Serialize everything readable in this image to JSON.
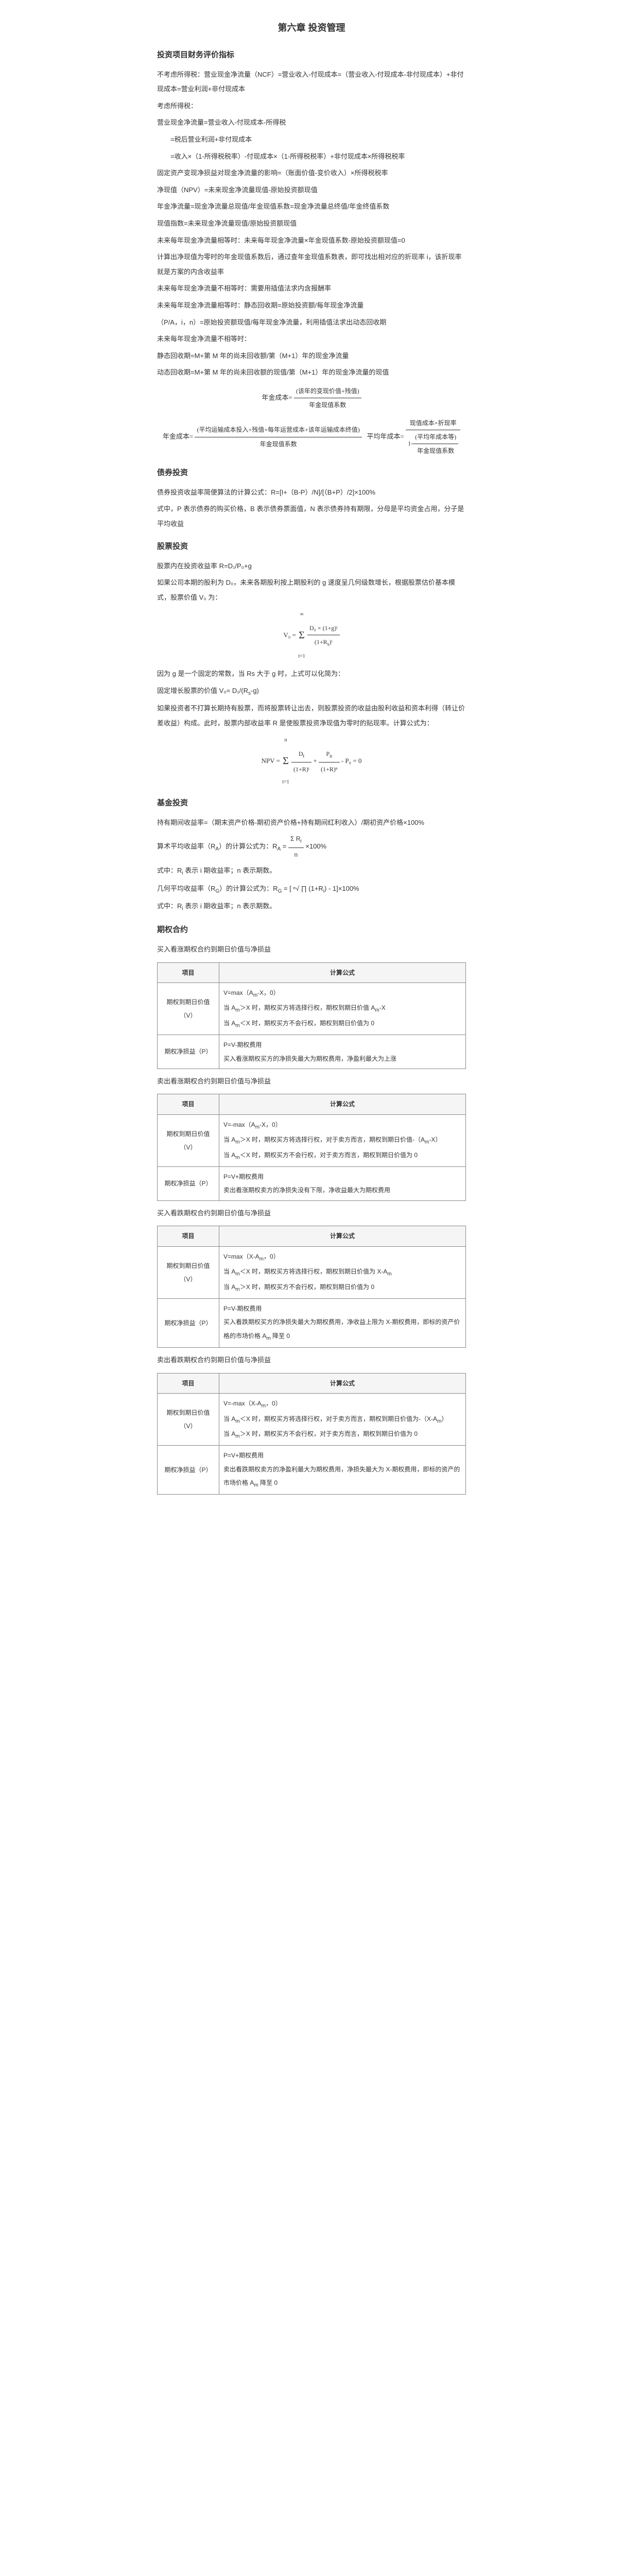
{
  "title": "第六章 投资管理",
  "sections": {
    "s1": {
      "heading": "投资项目财务评价指标",
      "lines": [
        "不考虑所得税：营业现金净流量（NCF）=营业收入-付现成本=（营业收入-付现成本-非付现成本）+非付现成本=营业利润+非付现成本",
        "考虑所得税：",
        "营业现金净流量=营业收入-付现成本-所得税",
        "=税后营业利润+非付现成本",
        "=收入×（1-所得税税率）-付现成本×（1-所得税税率）+非付现成本×所得税税率",
        "固定资产变现净损益对现金净流量的影响=（账面价值-变价收入）×所得税税率",
        "净现值（NPV）=未来现金净流量现值-原始投资额现值",
        "年金净流量=现金净流量总现值/年金现值系数=现金净流量总终值/年金终值系数",
        "现值指数=未来现金净流量现值/原始投资额现值",
        "未来每年现金净流量相等时：未来每年现金净流量×年金现值系数-原始投资额现值=0",
        "计算出净现值为零时的年金现值系数后，通过查年金现值系数表，即可找出相对应的折现率 i，该折现率就是方案的内含收益率",
        "未来每年现金净流量不相等时：需要用插值法求内含报酬率",
        "未来每年现金净流量相等时：静态回收期=原始投资额/每年现金净流量",
        "（P/A，i，n）=原始投资额现值/每年现金净流量，利用插值法求出动态回收期",
        "未来每年现金净流量不相等时：",
        "静态回收期=M+第 M 年的尚未回收额/第（M+1）年的现金净流量",
        "动态回收期=M+第 M 年的尚未回收额的现值/第（M+1）年的现金净流量的现值"
      ],
      "formula_label1": "年金成本=",
      "formula_label2": "年金成本=",
      "formula_frac1_num": "(该年的变现价值+残值)",
      "formula_frac1_den": "年金现值系数",
      "formula_frac2_num": "(平均运输成本投入+残值+每年运营成本+该年运输成本终值)",
      "formula_frac2_den": "年金现值系数",
      "formula_tail1": "平均年成本=",
      "formula_tail1_num": "现值成本×折现率",
      "formula_tail1_den": "1-",
      "formula_tail2": "(平均年成本等)",
      "formula_tail2_den": "年金现值系数"
    },
    "s2": {
      "heading": "债券投资",
      "lines": [
        "债券投资收益率简便算法的计算公式：R=[I+（B-P）/N]/[（B+P）/2]×100%",
        "式中，P 表示债券的购买价格，B 表示债券票面值，N 表示债券持有期限，分母是平均资金占用，分子是平均收益"
      ]
    },
    "s3": {
      "heading": "股票投资",
      "lines": [
        "股票内在投资收益率 R=D₁/P₀+g",
        "如果公司本期的股利为 D₀，未来各期股利按上期股利的 g 速度呈几何级数增长，根据股票估价基本模式，股票价值 V₀ 为："
      ],
      "formula1_lhs": "V₀ =",
      "formula1_sum": "Σ",
      "formula1_sum_from": "t=1",
      "formula1_sum_to": "∞",
      "formula1_num": "D₀ × (1+g)ᵗ",
      "formula1_den": "(1+R<sub>s</sub>)ᵗ",
      "lines2": [
        "因为 g 是一个固定的常数，当 Rs 大于 g 时，上式可以化简为：",
        "固定增长股票的价值 V₀= D₁/(R<sub>s</sub>-g)",
        "如果投资者不打算长期持有股票，而将股票转让出去，则股票投资的收益由股利收益和资本利得（转让价差收益）构成。此时，股票内部收益率 R 是使股票投资净现值为零时的贴现率。计算公式为："
      ],
      "formula2_lhs": "NPV =",
      "formula2_sum": "Σ",
      "formula2_sum_from": "t=1",
      "formula2_sum_to": "n",
      "formula2_term1_num": "D<sub>t</sub>",
      "formula2_term1_den": "(1+R)ᵗ",
      "formula2_plus": "+",
      "formula2_term2_num": "P<sub>n</sub>",
      "formula2_term2_den": "(1+R)ⁿ",
      "formula2_tail": "- P₀ = 0"
    },
    "s4": {
      "heading": "基金投资",
      "lines": [
        "持有期间收益率=（期末资产价格-期初资产价格+持有期间红利收入）/期初资产价格×100%"
      ],
      "formula1_lhs": "算术平均收益率（R<sub>A</sub>）的计算公式为：R<sub>A</sub> =",
      "formula1_num": "Σ R<sub>i</sub>",
      "formula1_den": "n",
      "formula1_tail": "×100%",
      "lines2": [
        "式中：R<sub>i</sub> 表示 i 期收益率；n 表示期数。"
      ],
      "formula2_lhs": "几何平均收益率（R<sub>G</sub>）的计算公式为：R<sub>G</sub> = [",
      "formula2_root": "ⁿ√",
      "formula2_prod": "∏ (1+R<sub>i</sub>)",
      "formula2_tail": "- 1]×100%",
      "lines3": [
        "式中：R<sub>i</sub> 表示 i 期收益率；n 表示期数。"
      ]
    },
    "s5": {
      "heading": "期权合约",
      "tables": {
        "t1": {
          "caption": "买入看涨期权合约到期日价值与净损益",
          "col1": "项目",
          "col2": "计算公式",
          "rows": [
            [
              "期权到期日价值（V）",
              "V=max（A<sub>m</sub>-X，0）\n当 A<sub>m</sub>＞X 时，期权买方将选择行权，期权到期日价值 A<sub>m</sub>-X\n当 A<sub>m</sub>＜X 时，期权买方不会行权，期权到期日价值为 0"
            ],
            [
              "期权净损益（P）",
              "P=V-期权费用\n买入看涨期权买方的净损失最大为期权费用，净盈利最大为上涨"
            ]
          ]
        },
        "t2": {
          "caption": "卖出看涨期权合约到期日价值与净损益",
          "col1": "项目",
          "col2": "计算公式",
          "rows": [
            [
              "期权到期日价值（V）",
              "V=-max（A<sub>m</sub>-X，0）\n当 A<sub>m</sub>＞X 时，期权买方将选择行权，对于卖方而言，期权到期日价值-（A<sub>m</sub>-X）\n当 A<sub>m</sub>＜X 时，期权买方不会行权，对于卖方而言，期权到期日价值为 0"
            ],
            [
              "期权净损益（P）",
              "P=V+期权费用\n卖出看涨期权卖方的净损失没有下限，净收益最大为期权费用"
            ]
          ]
        },
        "t3": {
          "caption": "买入看跌期权合约到期日价值与净损益",
          "col1": "项目",
          "col2": "计算公式",
          "rows": [
            [
              "期权到期日价值（V）",
              "V=max（X-A<sub>m</sub>，0）\n当 A<sub>m</sub>＜X 时，期权买方将选择行权，期权到期日价值为 X-A<sub>m</sub>\n当 A<sub>m</sub>＞X 时，期权买方不会行权，期权到期日价值为 0"
            ],
            [
              "期权净损益（P）",
              "P=V-期权费用\n买入看跌期权买方的净损失最大为期权费用，净收益上限为 X-期权费用，即标的资产价格的市场价格 A<sub>m</sub> 降至 0"
            ]
          ]
        },
        "t4": {
          "caption": "卖出看跌期权合约到期日价值与净损益",
          "col1": "项目",
          "col2": "计算公式",
          "rows": [
            [
              "期权到期日价值（V）",
              "V=-max（X-A<sub>m</sub>，0）\n当 A<sub>m</sub>＜X 时，期权买方将选择行权，对于卖方而言，期权到期日价值为-（X-A<sub>m</sub>）\n当 A<sub>m</sub>＞X 时，期权买方不会行权，对于卖方而言，期权到期日价值为 0"
            ],
            [
              "期权净损益（P）",
              "P=V+期权费用\n卖出看跌期权卖方的净盈利最大为期权费用，净损失最大为 X-期权费用，即标的资产的市场价格 A<sub>m</sub> 降至 0"
            ]
          ]
        }
      }
    }
  }
}
